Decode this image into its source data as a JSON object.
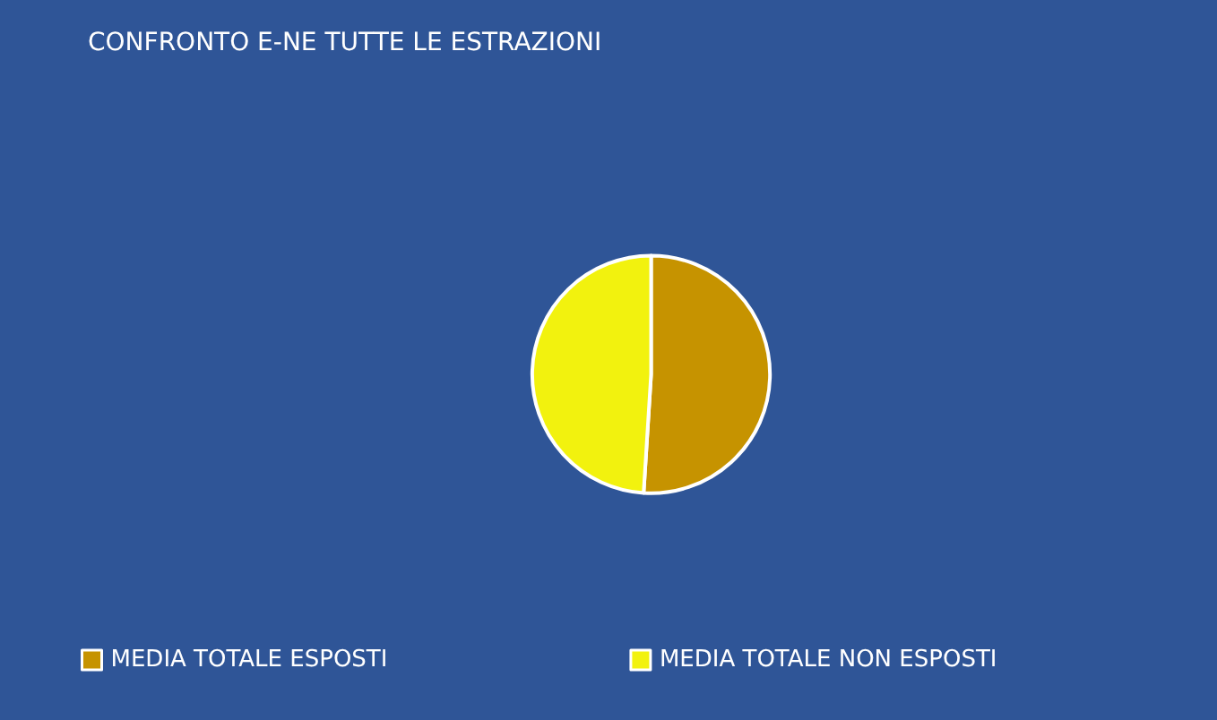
{
  "chart_data": {
    "type": "pie",
    "title": "CONFRONTO E-NE TUTTE LE ESTRAZIONI",
    "categories": [
      "MEDIA TOTALE ESPOSTI",
      "MEDIA TOTALE NON ESPOSTI"
    ],
    "values": [
      51,
      49
    ],
    "colors": [
      "#c69300",
      "#f2f20e"
    ],
    "legend": "bottom"
  }
}
